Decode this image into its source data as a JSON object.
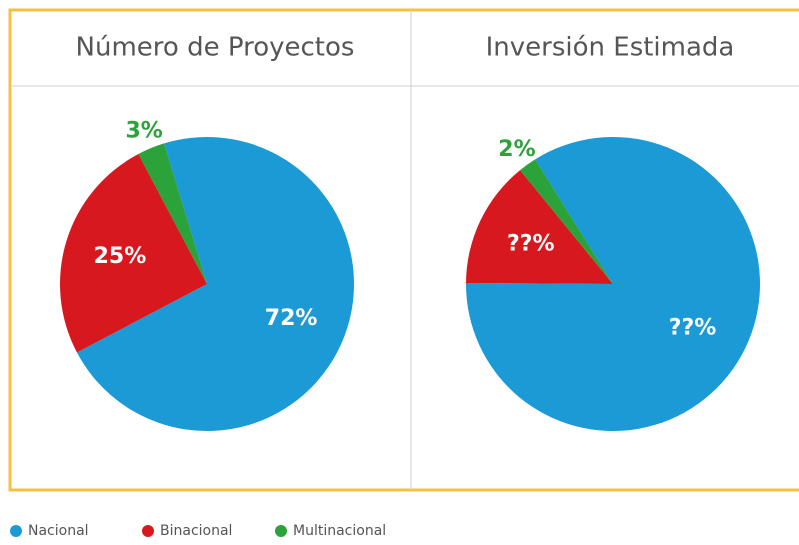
{
  "chart_data": [
    {
      "type": "pie",
      "title": "Número de Proyectos",
      "categories": [
        "Nacional",
        "Binacional",
        "Multinacional"
      ],
      "values": [
        72,
        25,
        3
      ],
      "colors": [
        "#1b9ad6",
        "#d7191f",
        "#2ba23a"
      ]
    },
    {
      "type": "pie",
      "title": "Inversión Estimada",
      "values": [
        84,
        14,
        2
      ],
      "value_labels": [
        "??%",
        "??%",
        "2%"
      ],
      "colors": [
        "#1b9ad6",
        "#d7191f",
        "#2ba23a"
      ]
    }
  ]
}
